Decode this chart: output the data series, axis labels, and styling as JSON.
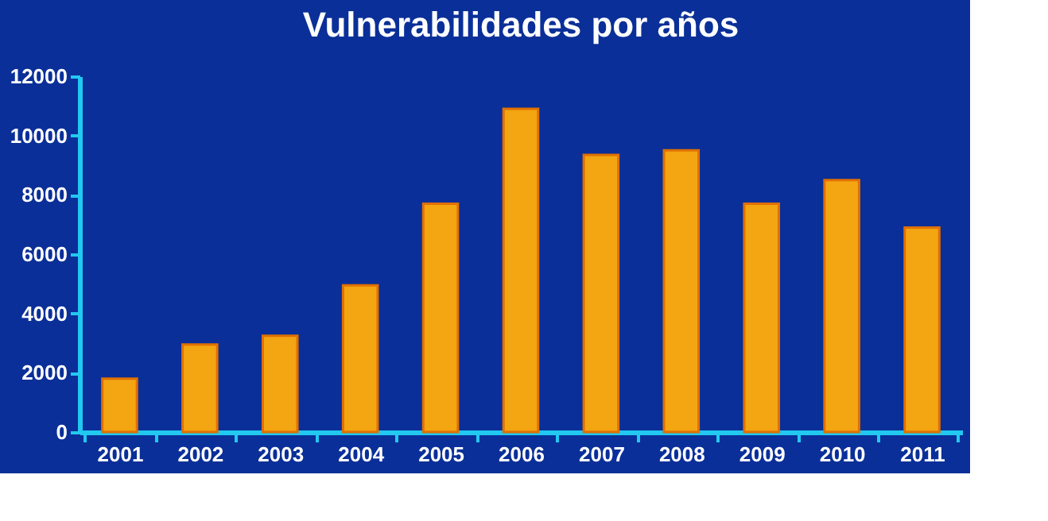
{
  "chart_data": {
    "type": "bar",
    "title": "Vulnerabilidades por años",
    "categories": [
      "2001",
      "2002",
      "2003",
      "2004",
      "2005",
      "2006",
      "2007",
      "2008",
      "2009",
      "2010",
      "2011"
    ],
    "values": [
      1800,
      2950,
      3250,
      4950,
      7700,
      10900,
      9350,
      9500,
      7700,
      8500,
      6900
    ],
    "color": "#f3a512",
    "ylim": [
      0,
      12000
    ],
    "yticks": [
      0,
      2000,
      4000,
      6000,
      8000,
      10000,
      12000
    ],
    "grid": false
  }
}
